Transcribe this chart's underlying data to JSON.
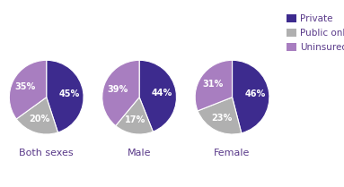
{
  "charts": [
    {
      "label": "Both sexes",
      "values": [
        45,
        20,
        35
      ],
      "pct_labels": [
        "45%",
        "20%",
        "35%"
      ]
    },
    {
      "label": "Male",
      "values": [
        44,
        17,
        39
      ],
      "pct_labels": [
        "44%",
        "17%",
        "39%"
      ]
    },
    {
      "label": "Female",
      "values": [
        46,
        23,
        31
      ],
      "pct_labels": [
        "46%",
        "23%",
        "31%"
      ]
    }
  ],
  "colors": [
    "#3d2b8e",
    "#b0b0b0",
    "#a87ec0"
  ],
  "legend_labels": [
    "Private",
    "Public only",
    "Uninsured"
  ],
  "legend_colors": [
    "#3d2b8e",
    "#b0b0b0",
    "#a87ec0"
  ],
  "label_color_private": "#ffffff",
  "label_color_other": "#ffffff",
  "chart_label_color": "#5a3a8a",
  "background_color": "#ffffff",
  "label_fontsize": 7.0,
  "chart_label_fontsize": 8.0,
  "legend_fontsize": 7.5
}
